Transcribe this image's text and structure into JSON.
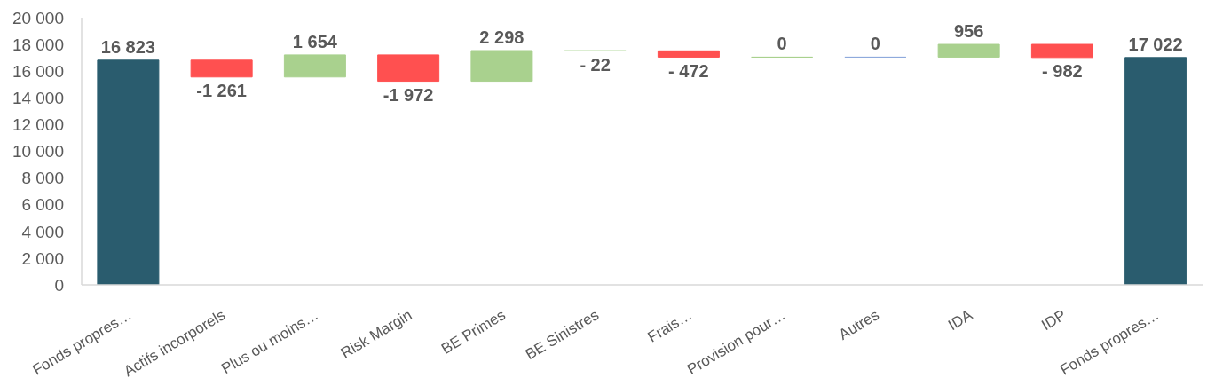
{
  "chart_data": {
    "type": "bar",
    "categories": [
      "Fonds propres…",
      "Actifs incorporels",
      "Plus ou moins…",
      "Risk Margin",
      "BE Primes",
      "BE Sinistres",
      "Frais…",
      "Provision pour…",
      "Autres",
      "IDA",
      "IDP",
      "Fonds propres…"
    ],
    "values": [
      16823,
      -1261,
      1654,
      -1972,
      2298,
      -22,
      -472,
      0,
      0,
      956,
      -982,
      17022
    ],
    "base": [
      0,
      16823,
      15562,
      17216,
      15244,
      17542,
      17520,
      17048,
      17048,
      17048,
      18004,
      0
    ],
    "colors": [
      "#2a5c6e",
      "#ff5050",
      "#a9d18e",
      "#ff5050",
      "#a9d18e",
      "#c5e0b4",
      "#ff5050",
      "#a9d18e",
      "#8faadc",
      "#a9d18e",
      "#ff5050",
      "#2a5c6e"
    ],
    "value_labels": [
      "16 823",
      "-1 261",
      "1 654",
      "-1 972",
      "2 298",
      "- 22",
      "- 472",
      "0",
      "0",
      "956",
      "- 982",
      "17 022"
    ],
    "ylim": [
      0,
      20000
    ],
    "yticks": [
      0,
      {
        "value": 2000,
        "label": "2 000"
      },
      {
        "value": 4000,
        "label": "4 000"
      },
      {
        "value": 6000,
        "label": "6 000"
      },
      {
        "value": 8000,
        "label": "8 000"
      },
      {
        "value": 10000,
        "label": "10 000"
      },
      {
        "value": 12000,
        "label": "12 000"
      },
      {
        "value": 14000,
        "label": "14 000"
      },
      {
        "value": 16000,
        "label": "16 000"
      },
      {
        "value": 18000,
        "label": "18 000"
      },
      {
        "value": 20000,
        "label": "20 000"
      }
    ]
  }
}
